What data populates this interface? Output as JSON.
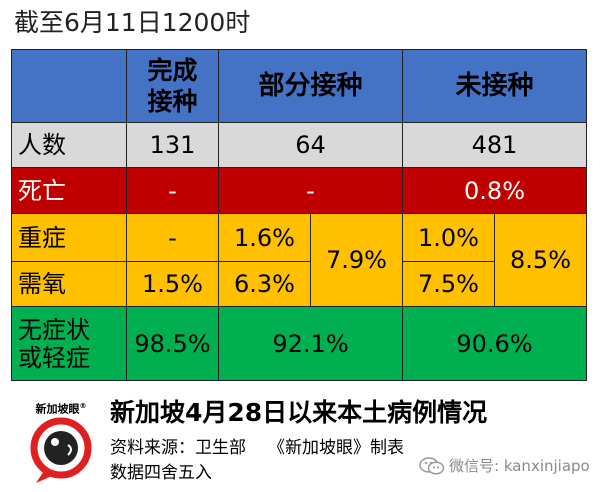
{
  "caption": "截至6月11日1200时",
  "table": {
    "headers": {
      "full": "完成\n接种",
      "partial": "部分接种",
      "none": "未接种"
    },
    "rows": {
      "count": {
        "label": "人数",
        "full": "131",
        "partial": "64",
        "none": "481"
      },
      "death": {
        "label": "死亡",
        "full": "-",
        "partial": "-",
        "none": "0.8%"
      },
      "severe": {
        "label": "重症",
        "full": "-",
        "partial": "1.6%",
        "none": "1.0%"
      },
      "oxygen": {
        "label": "需氧",
        "full": "1.5%",
        "partial": "6.3%",
        "none": "7.5%"
      },
      "combined": {
        "partial": "7.9%",
        "none": "8.5%"
      },
      "mild": {
        "label": "无症状\n或轻症",
        "full": "98.5%",
        "partial": "92.1%",
        "none": "90.6%"
      }
    }
  },
  "footer": {
    "title": "新加坡4月28日以来本土病例情况",
    "source": "资料来源：卫生部",
    "credit": "《新加坡眼》制表",
    "note": "数据四舍五入"
  },
  "logo": {
    "text": "新加坡眼",
    "mark": "®"
  },
  "wechat": {
    "label": "微信号: kanxinjiapo",
    "icon": "wechat-icon"
  },
  "colors": {
    "header": "#4472c4",
    "count": "#d9d9d9",
    "death": "#c00000",
    "amber": "#ffc000",
    "green": "#00b050",
    "logo_red": "#e02020"
  }
}
